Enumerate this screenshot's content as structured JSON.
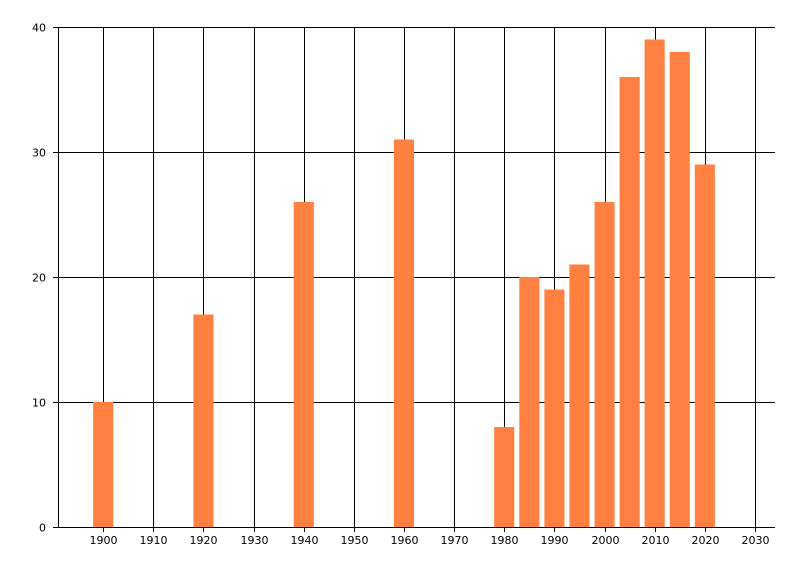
{
  "chart_data": {
    "type": "bar",
    "x": [
      1900,
      1920,
      1940,
      1960,
      1980,
      1985,
      1990,
      1995,
      2000,
      2005,
      2010,
      2015,
      2020
    ],
    "values": [
      10,
      17,
      26,
      31,
      8,
      20,
      19,
      21,
      26,
      36,
      39,
      38,
      29
    ],
    "xlim": [
      1891,
      2034
    ],
    "ylim": [
      0,
      40
    ],
    "x_ticks": [
      1900,
      1910,
      1920,
      1930,
      1940,
      1950,
      1960,
      1970,
      1980,
      1990,
      2000,
      2010,
      2020,
      2030
    ],
    "y_ticks": [
      0,
      10,
      20,
      30,
      40
    ],
    "bar_width_years": 4,
    "bar_color": "#ff8040",
    "grid": true,
    "legend": "none",
    "title": "",
    "xlabel": "",
    "ylabel": ""
  }
}
